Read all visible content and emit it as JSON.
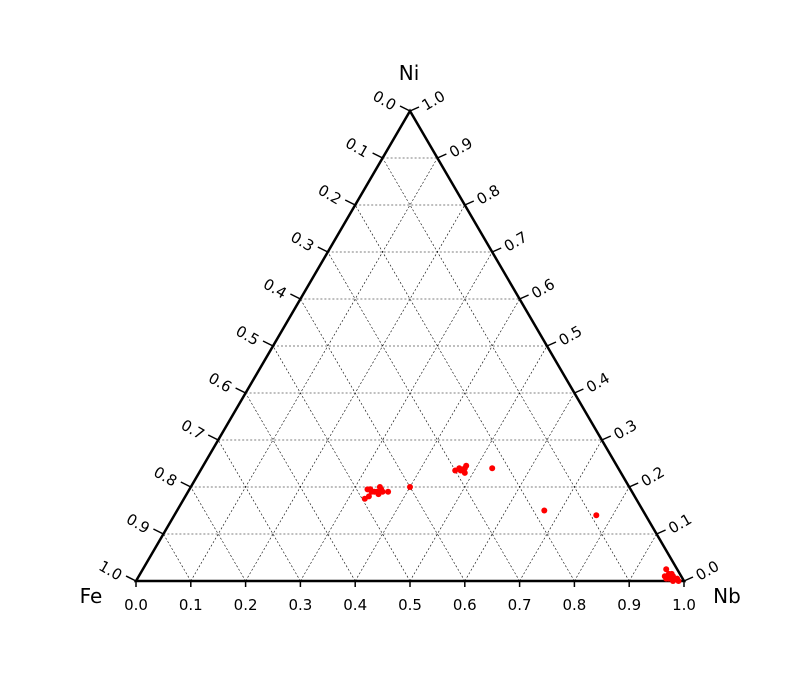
{
  "chart_data": {
    "type": "scatter",
    "subtype": "ternary",
    "corners": {
      "top": "Ni",
      "left": "Fe",
      "right": "Nb"
    },
    "grid": true,
    "color": "#ff0000",
    "bottom_ticks": [
      "0.0",
      "0.1",
      "0.2",
      "0.3",
      "0.4",
      "0.5",
      "0.6",
      "0.7",
      "0.8",
      "0.9",
      "1.0"
    ],
    "left_ticks": [
      "0.0",
      "0.1",
      "0.2",
      "0.3",
      "0.4",
      "0.5",
      "0.6",
      "0.7",
      "0.8",
      "0.9",
      "1.0"
    ],
    "right_ticks": [
      "0.0",
      "0.1",
      "0.2",
      "0.3",
      "0.4",
      "0.5",
      "0.6",
      "0.7",
      "0.8",
      "0.9",
      "1.0"
    ],
    "points": [
      {
        "Nb": 0.325,
        "Ni": 0.195,
        "Fe": 0.48
      },
      {
        "Nb": 0.33,
        "Ni": 0.195,
        "Fe": 0.475
      },
      {
        "Nb": 0.335,
        "Ni": 0.19,
        "Fe": 0.475
      },
      {
        "Nb": 0.34,
        "Ni": 0.19,
        "Fe": 0.47
      },
      {
        "Nb": 0.345,
        "Ni": 0.19,
        "Fe": 0.465
      },
      {
        "Nb": 0.35,
        "Ni": 0.195,
        "Fe": 0.455
      },
      {
        "Nb": 0.345,
        "Ni": 0.2,
        "Fe": 0.455
      },
      {
        "Nb": 0.35,
        "Ni": 0.185,
        "Fe": 0.465
      },
      {
        "Nb": 0.355,
        "Ni": 0.19,
        "Fe": 0.455
      },
      {
        "Nb": 0.335,
        "Ni": 0.18,
        "Fe": 0.485
      },
      {
        "Nb": 0.33,
        "Ni": 0.175,
        "Fe": 0.495
      },
      {
        "Nb": 0.365,
        "Ni": 0.19,
        "Fe": 0.445
      },
      {
        "Nb": 0.4,
        "Ni": 0.2,
        "Fe": 0.4
      },
      {
        "Nb": 0.465,
        "Ni": 0.235,
        "Fe": 0.3
      },
      {
        "Nb": 0.47,
        "Ni": 0.24,
        "Fe": 0.29
      },
      {
        "Nb": 0.475,
        "Ni": 0.235,
        "Fe": 0.29
      },
      {
        "Nb": 0.48,
        "Ni": 0.24,
        "Fe": 0.28
      },
      {
        "Nb": 0.485,
        "Ni": 0.23,
        "Fe": 0.285
      },
      {
        "Nb": 0.48,
        "Ni": 0.245,
        "Fe": 0.275
      },
      {
        "Nb": 0.53,
        "Ni": 0.24,
        "Fe": 0.23
      },
      {
        "Nb": 0.67,
        "Ni": 0.15,
        "Fe": 0.18
      },
      {
        "Nb": 0.77,
        "Ni": 0.14,
        "Fe": 0.09
      },
      {
        "Nb": 0.955,
        "Ni": 0.025,
        "Fe": 0.02
      },
      {
        "Nb": 0.96,
        "Ni": 0.01,
        "Fe": 0.03
      },
      {
        "Nb": 0.965,
        "Ni": 0.015,
        "Fe": 0.02
      },
      {
        "Nb": 0.97,
        "Ni": 0.005,
        "Fe": 0.025
      },
      {
        "Nb": 0.975,
        "Ni": 0.01,
        "Fe": 0.015
      },
      {
        "Nb": 0.98,
        "Ni": 0.0,
        "Fe": 0.02
      },
      {
        "Nb": 0.985,
        "Ni": 0.005,
        "Fe": 0.01
      },
      {
        "Nb": 0.99,
        "Ni": 0.0,
        "Fe": 0.01
      },
      {
        "Nb": 0.965,
        "Ni": 0.005,
        "Fe": 0.03
      },
      {
        "Nb": 0.97,
        "Ni": 0.015,
        "Fe": 0.015
      }
    ]
  }
}
